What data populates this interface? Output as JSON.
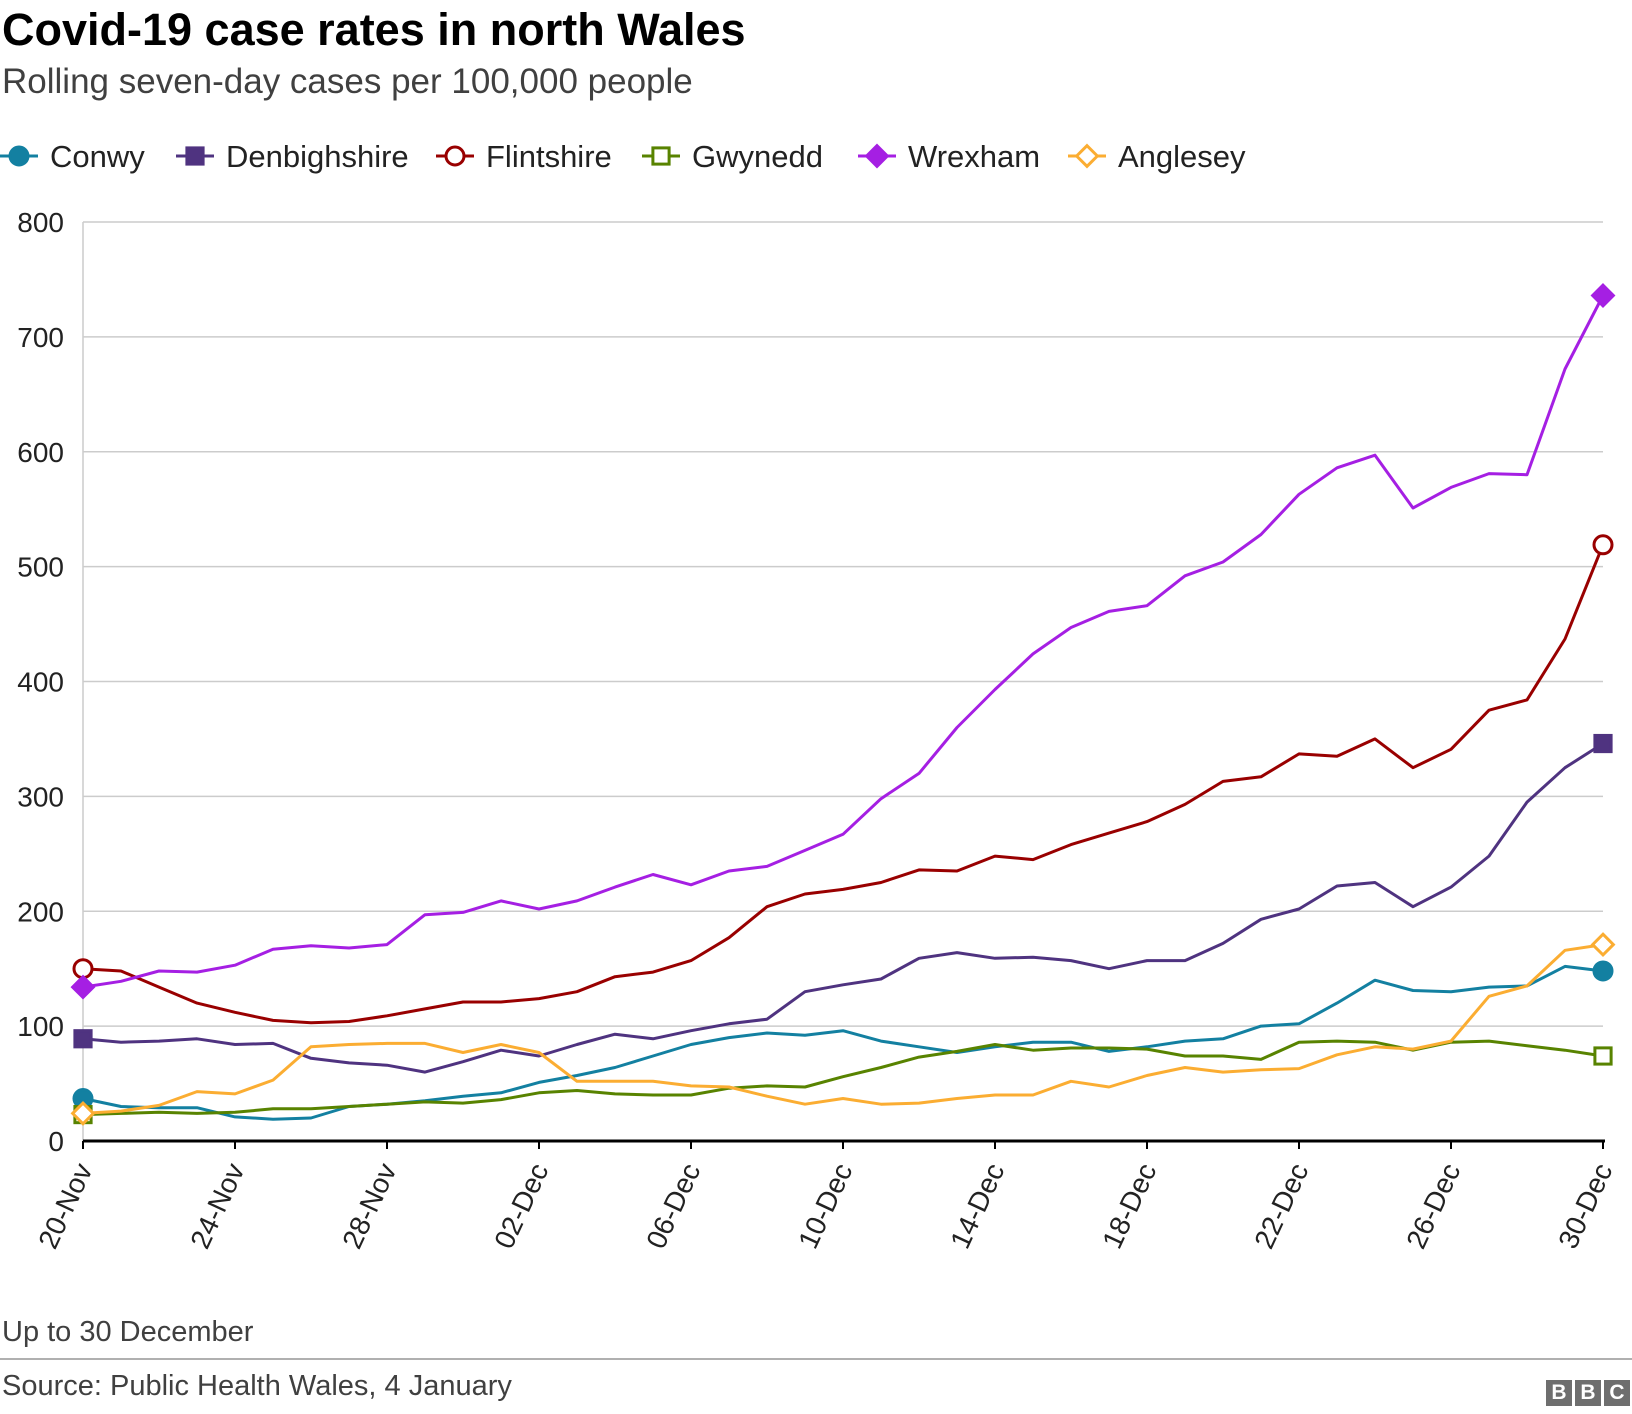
{
  "header": {
    "title": "Covid-19 case rates in north Wales",
    "subtitle": "Rolling seven-day cases per 100,000 people"
  },
  "footer": {
    "note": "Up to 30 December",
    "source": "Source: Public Health Wales, 4 January",
    "logo_letters": [
      "B",
      "B",
      "C"
    ]
  },
  "chart_data": {
    "type": "line",
    "title": "Covid-19 case rates in north Wales",
    "subtitle": "Rolling seven-day cases per 100,000 people",
    "xlabel": "",
    "ylabel": "",
    "ylim": [
      0,
      800
    ],
    "yticks": [
      0,
      100,
      200,
      300,
      400,
      500,
      600,
      700,
      800
    ],
    "grid": true,
    "legend_position": "top",
    "x": [
      "20-Nov",
      "21-Nov",
      "22-Nov",
      "23-Nov",
      "24-Nov",
      "25-Nov",
      "26-Nov",
      "27-Nov",
      "28-Nov",
      "29-Nov",
      "30-Nov",
      "01-Dec",
      "02-Dec",
      "03-Dec",
      "04-Dec",
      "05-Dec",
      "06-Dec",
      "07-Dec",
      "08-Dec",
      "09-Dec",
      "10-Dec",
      "11-Dec",
      "12-Dec",
      "13-Dec",
      "14-Dec",
      "15-Dec",
      "16-Dec",
      "17-Dec",
      "18-Dec",
      "19-Dec",
      "20-Dec",
      "21-Dec",
      "22-Dec",
      "23-Dec",
      "24-Dec",
      "25-Dec",
      "26-Dec",
      "27-Dec",
      "28-Dec",
      "29-Dec",
      "30-Dec"
    ],
    "x_tick_labels": [
      "20-Nov",
      "24-Nov",
      "28-Nov",
      "02-Dec",
      "06-Dec",
      "10-Dec",
      "14-Dec",
      "18-Dec",
      "22-Dec",
      "26-Dec",
      "30-Dec"
    ],
    "series": [
      {
        "name": "Conwy",
        "color": "#1380a1",
        "marker": "circle",
        "filled": true,
        "values": [
          37,
          30,
          29,
          29,
          21,
          19,
          20,
          30,
          32,
          35,
          39,
          42,
          51,
          57,
          64,
          74,
          84,
          90,
          94,
          92,
          96,
          87,
          82,
          77,
          82,
          86,
          86,
          78,
          82,
          87,
          89,
          100,
          102,
          120,
          140,
          131,
          130,
          134,
          135,
          152,
          148
        ]
      },
      {
        "name": "Denbighshire",
        "color": "#4f3380",
        "marker": "square",
        "filled": true,
        "values": [
          89,
          86,
          87,
          89,
          84,
          85,
          72,
          68,
          66,
          60,
          69,
          79,
          74,
          84,
          93,
          89,
          96,
          102,
          106,
          130,
          136,
          141,
          159,
          164,
          159,
          160,
          157,
          150,
          157,
          157,
          172,
          193,
          202,
          222,
          225,
          204,
          221,
          248,
          295,
          325,
          346
        ]
      },
      {
        "name": "Flintshire",
        "color": "#990000",
        "marker": "circle",
        "filled": false,
        "values": [
          150,
          148,
          134,
          120,
          112,
          105,
          103,
          104,
          109,
          115,
          121,
          121,
          124,
          130,
          143,
          147,
          157,
          177,
          204,
          215,
          219,
          225,
          236,
          235,
          248,
          245,
          258,
          268,
          278,
          293,
          313,
          317,
          337,
          335,
          350,
          325,
          341,
          375,
          384,
          437,
          519
        ]
      },
      {
        "name": "Gwynedd",
        "color": "#588300",
        "marker": "square",
        "filled": false,
        "values": [
          23,
          24,
          25,
          24,
          25,
          28,
          28,
          30,
          32,
          34,
          33,
          36,
          42,
          44,
          41,
          40,
          40,
          46,
          48,
          47,
          56,
          64,
          73,
          78,
          84,
          79,
          81,
          81,
          80,
          74,
          74,
          71,
          86,
          87,
          86,
          79,
          86,
          87,
          83,
          79,
          74
        ]
      },
      {
        "name": "Wrexham",
        "color": "#a51fe3",
        "marker": "diamond",
        "filled": true,
        "values": [
          134,
          139,
          148,
          147,
          153,
          167,
          170,
          168,
          171,
          197,
          199,
          209,
          202,
          209,
          221,
          232,
          223,
          235,
          239,
          253,
          267,
          298,
          320,
          360,
          393,
          424,
          447,
          461,
          466,
          492,
          504,
          528,
          563,
          586,
          597,
          551,
          569,
          581,
          580,
          672,
          736
        ]
      },
      {
        "name": "Anglesey",
        "color": "#fbad32",
        "marker": "diamond",
        "filled": false,
        "values": [
          24,
          26,
          31,
          43,
          41,
          53,
          82,
          84,
          85,
          85,
          77,
          84,
          77,
          52,
          52,
          52,
          48,
          47,
          39,
          32,
          37,
          32,
          33,
          37,
          40,
          40,
          52,
          47,
          57,
          64,
          60,
          62,
          63,
          75,
          82,
          80,
          87,
          126,
          135,
          166,
          171
        ]
      }
    ]
  }
}
